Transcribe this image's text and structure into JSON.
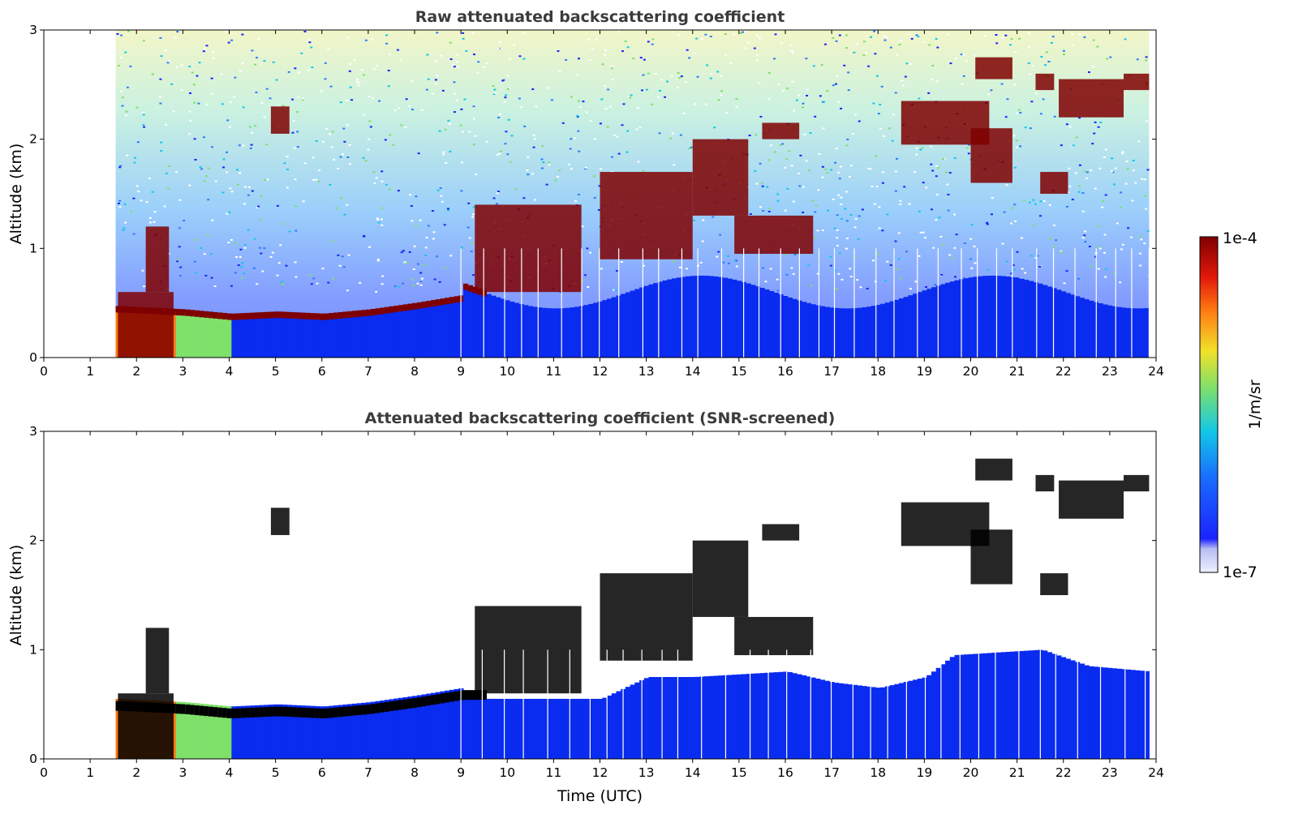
{
  "figure": {
    "colors": {
      "ground_blue": "#0a2bf0",
      "mid_blue": "#2f7bff",
      "cyan": "#12c8e6",
      "green": "#7fe06a",
      "yellow": "#f2e12a",
      "orange": "#ff7a12",
      "dark_red": "#7f0000",
      "black": "#000000"
    }
  },
  "chart_data": [
    {
      "type": "heatmap",
      "title": "Raw attenuated backscattering coefficient",
      "xlabel": "",
      "ylabel": "Altitude (km)",
      "xlim": [
        0,
        24
      ],
      "ylim": [
        0,
        3
      ],
      "x_ticks": [
        "0",
        "1",
        "2",
        "3",
        "4",
        "5",
        "6",
        "7",
        "8",
        "9",
        "10",
        "11",
        "12",
        "13",
        "14",
        "15",
        "16",
        "17",
        "18",
        "19",
        "20",
        "21",
        "22",
        "23",
        "24"
      ],
      "y_ticks": [
        "0",
        "1",
        "2",
        "3"
      ],
      "data_start_hour": 1.55,
      "data_end_hour": 23.85,
      "boundary_layer_top_km": [
        {
          "x": 1.6,
          "y": 0.45
        },
        {
          "x": 3.0,
          "y": 0.42
        },
        {
          "x": 4.0,
          "y": 0.38
        },
        {
          "x": 5.0,
          "y": 0.4
        },
        {
          "x": 6.0,
          "y": 0.38
        },
        {
          "x": 7.0,
          "y": 0.42
        },
        {
          "x": 8.0,
          "y": 0.48
        },
        {
          "x": 9.0,
          "y": 0.55
        }
      ],
      "cloud_layers_km": [
        {
          "x0": 1.6,
          "x1": 2.8,
          "y0": 0.0,
          "y1": 0.6
        },
        {
          "x0": 2.2,
          "x1": 2.7,
          "y0": 0.6,
          "y1": 1.2
        },
        {
          "x0": 4.9,
          "x1": 5.3,
          "y0": 2.05,
          "y1": 2.3
        },
        {
          "x0": 9.3,
          "x1": 11.6,
          "y0": 0.6,
          "y1": 1.4
        },
        {
          "x0": 12.0,
          "x1": 14.0,
          "y0": 0.9,
          "y1": 1.7
        },
        {
          "x0": 14.0,
          "x1": 15.2,
          "y0": 1.3,
          "y1": 2.0
        },
        {
          "x0": 15.5,
          "x1": 16.3,
          "y0": 2.0,
          "y1": 2.15
        },
        {
          "x0": 14.9,
          "x1": 16.6,
          "y0": 0.95,
          "y1": 1.3
        },
        {
          "x0": 18.5,
          "x1": 20.4,
          "y0": 1.95,
          "y1": 2.35
        },
        {
          "x0": 20.0,
          "x1": 20.9,
          "y0": 1.6,
          "y1": 2.1
        },
        {
          "x0": 20.1,
          "x1": 20.9,
          "y0": 2.55,
          "y1": 2.75
        },
        {
          "x0": 21.4,
          "x1": 21.8,
          "y0": 2.45,
          "y1": 2.6
        },
        {
          "x0": 21.9,
          "x1": 23.3,
          "y0": 2.2,
          "y1": 2.55
        },
        {
          "x0": 23.3,
          "x1": 23.85,
          "y0": 2.45,
          "y1": 2.6
        },
        {
          "x0": 21.5,
          "x1": 22.1,
          "y0": 1.5,
          "y1": 1.7
        }
      ]
    },
    {
      "type": "heatmap",
      "title": "Attenuated backscattering coefficient (SNR-screened)",
      "xlabel": "Time (UTC)",
      "ylabel": "Altitude (km)",
      "xlim": [
        0,
        24
      ],
      "ylim": [
        0,
        3
      ],
      "x_ticks": [
        "0",
        "1",
        "2",
        "3",
        "4",
        "5",
        "6",
        "7",
        "8",
        "9",
        "10",
        "11",
        "12",
        "13",
        "14",
        "15",
        "16",
        "17",
        "18",
        "19",
        "20",
        "21",
        "22",
        "23",
        "24"
      ],
      "y_ticks": [
        "0",
        "1",
        "2",
        "3"
      ],
      "screened_signal_top_km": [
        {
          "x": 9.0,
          "y": 0.55
        },
        {
          "x": 12.0,
          "y": 0.55
        },
        {
          "x": 13.0,
          "y": 0.75
        },
        {
          "x": 14.0,
          "y": 0.75
        },
        {
          "x": 16.0,
          "y": 0.8
        },
        {
          "x": 17.0,
          "y": 0.7
        },
        {
          "x": 18.0,
          "y": 0.65
        },
        {
          "x": 19.0,
          "y": 0.75
        },
        {
          "x": 19.6,
          "y": 0.95
        },
        {
          "x": 21.5,
          "y": 1.0
        },
        {
          "x": 22.5,
          "y": 0.85
        },
        {
          "x": 23.85,
          "y": 0.8
        }
      ]
    }
  ],
  "colorbar": {
    "label": "1/m/sr",
    "top_label": "1e-4",
    "bottom_label": "1e-7"
  }
}
